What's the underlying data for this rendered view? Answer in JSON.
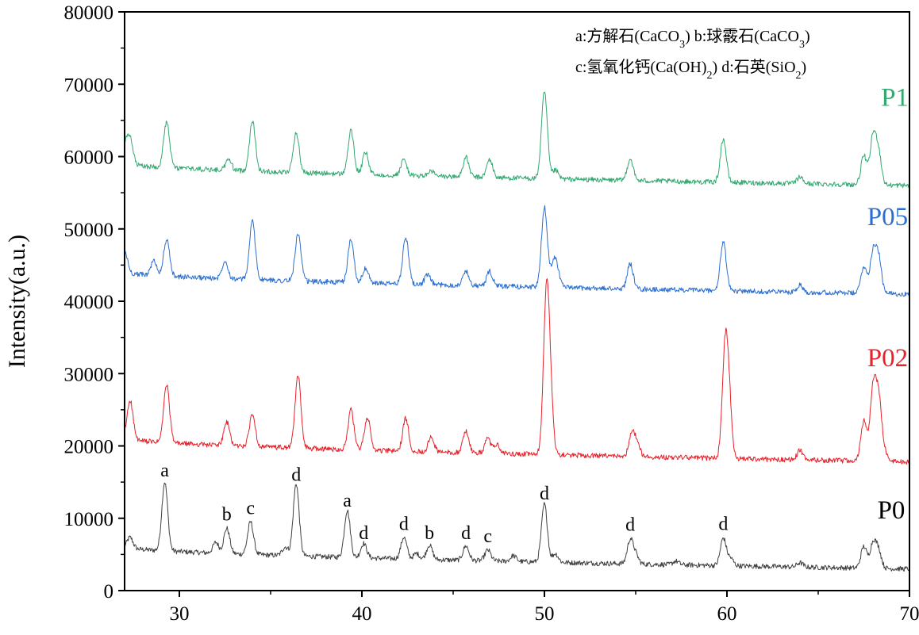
{
  "chart_data": {
    "type": "line",
    "title": "",
    "xlabel": "",
    "ylabel": "Intensity(a.u.)",
    "xlim": [
      27,
      70
    ],
    "ylim": [
      0,
      80000
    ],
    "x_ticks": [
      30,
      40,
      50,
      60,
      70
    ],
    "y_ticks": [
      0,
      10000,
      20000,
      30000,
      40000,
      50000,
      60000,
      70000,
      80000
    ],
    "grid": false,
    "legend_position": "top-right",
    "legend_lines": [
      [
        "a:方解石(CaCO",
        "3",
        ")  b:球霰石(CaCO",
        "3",
        ")"
      ],
      [
        "c:氢氧化钙(Ca(OH)",
        "2",
        ") d:石英(SiO",
        "2",
        ")"
      ]
    ],
    "series": [
      {
        "name": "P0",
        "color": "#404040",
        "baseline_start": 6000,
        "baseline_end": 3000,
        "peaks": [
          [
            27.3,
            1500
          ],
          [
            29.2,
            9500
          ],
          [
            32.0,
            1500
          ],
          [
            32.6,
            3500
          ],
          [
            33.9,
            4500
          ],
          [
            35.8,
            1200
          ],
          [
            36.4,
            10000
          ],
          [
            39.2,
            6500
          ],
          [
            40.1,
            2000
          ],
          [
            42.3,
            3000
          ],
          [
            43.0,
            800
          ],
          [
            43.7,
            2000
          ],
          [
            45.7,
            2000
          ],
          [
            46.9,
            1500
          ],
          [
            48.3,
            800
          ],
          [
            50.0,
            8000
          ],
          [
            50.6,
            1200
          ],
          [
            54.7,
            3300
          ],
          [
            55.0,
            1200
          ],
          [
            57.2,
            500
          ],
          [
            59.8,
            3800
          ],
          [
            60.2,
            1000
          ],
          [
            64.0,
            600
          ],
          [
            67.5,
            3000
          ],
          [
            68.0,
            3400
          ],
          [
            68.3,
            2500
          ]
        ]
      },
      {
        "name": "P02",
        "color": "#e8212a",
        "baseline_start": 21000,
        "baseline_end": 17800,
        "peaks": [
          [
            27.3,
            5500
          ],
          [
            29.3,
            8000
          ],
          [
            32.6,
            3200
          ],
          [
            34.0,
            4500
          ],
          [
            36.5,
            10000
          ],
          [
            39.4,
            5500
          ],
          [
            40.3,
            4500
          ],
          [
            42.4,
            4500
          ],
          [
            43.8,
            2000
          ],
          [
            45.7,
            3000
          ],
          [
            46.9,
            2000
          ],
          [
            47.4,
            1200
          ],
          [
            50.1,
            20000
          ],
          [
            50.3,
            8000
          ],
          [
            54.8,
            3500
          ],
          [
            55.1,
            1500
          ],
          [
            59.9,
            14000
          ],
          [
            60.1,
            7000
          ],
          [
            64.0,
            1300
          ],
          [
            67.5,
            5500
          ],
          [
            68.0,
            9500
          ],
          [
            68.3,
            8500
          ],
          [
            68.6,
            1500
          ]
        ]
      },
      {
        "name": "P05",
        "color": "#2b6fd0",
        "baseline_start": 44000,
        "baseline_end": 41000,
        "peaks": [
          [
            27.0,
            3000
          ],
          [
            28.6,
            2000
          ],
          [
            29.3,
            5000
          ],
          [
            32.5,
            2500
          ],
          [
            34.0,
            8000
          ],
          [
            36.5,
            6500
          ],
          [
            39.4,
            6000
          ],
          [
            40.2,
            2000
          ],
          [
            42.4,
            6500
          ],
          [
            43.6,
            1300
          ],
          [
            45.7,
            2000
          ],
          [
            47.0,
            2000
          ],
          [
            50.0,
            11000
          ],
          [
            50.5,
            3000
          ],
          [
            50.7,
            2000
          ],
          [
            54.7,
            3500
          ],
          [
            59.8,
            6800
          ],
          [
            64.0,
            1000
          ],
          [
            67.5,
            3700
          ],
          [
            68.0,
            5500
          ],
          [
            68.3,
            5000
          ]
        ]
      },
      {
        "name": "P1",
        "color": "#33a870",
        "baseline_start": 59000,
        "baseline_end": 56000,
        "peaks": [
          [
            27.0,
            2500
          ],
          [
            27.3,
            3500
          ],
          [
            29.3,
            6300
          ],
          [
            32.7,
            1500
          ],
          [
            34.0,
            7000
          ],
          [
            36.4,
            5500
          ],
          [
            39.4,
            6000
          ],
          [
            40.2,
            3000
          ],
          [
            42.3,
            2200
          ],
          [
            43.8,
            700
          ],
          [
            45.7,
            2700
          ],
          [
            47.0,
            2500
          ],
          [
            50.0,
            12000
          ],
          [
            50.6,
            1200
          ],
          [
            54.7,
            3000
          ],
          [
            59.8,
            6000
          ],
          [
            64.0,
            900
          ],
          [
            67.5,
            4000
          ],
          [
            68.0,
            6500
          ],
          [
            68.3,
            4500
          ]
        ]
      }
    ],
    "series_labels": [
      {
        "text": "P0",
        "x": 69.0,
        "y": 10000,
        "color": "#000000"
      },
      {
        "text": "P02",
        "x": 68.8,
        "y": 31000,
        "color": "#e8212a"
      },
      {
        "text": "P05",
        "x": 68.8,
        "y": 50500,
        "color": "#2b6fd0"
      },
      {
        "text": "P1",
        "x": 69.2,
        "y": 67000,
        "color": "#33a870"
      }
    ],
    "peak_labels": [
      {
        "text": "a",
        "x": 29.2,
        "y": 15800
      },
      {
        "text": "b",
        "x": 32.6,
        "y": 9700
      },
      {
        "text": "c",
        "x": 33.9,
        "y": 10600
      },
      {
        "text": "d",
        "x": 36.4,
        "y": 15200
      },
      {
        "text": "a",
        "x": 39.2,
        "y": 11600
      },
      {
        "text": "d",
        "x": 40.1,
        "y": 7100
      },
      {
        "text": "d",
        "x": 42.3,
        "y": 8400
      },
      {
        "text": "b",
        "x": 43.7,
        "y": 7100
      },
      {
        "text": "d",
        "x": 45.7,
        "y": 7100
      },
      {
        "text": "c",
        "x": 46.9,
        "y": 6700
      },
      {
        "text": "d",
        "x": 50.0,
        "y": 12600
      },
      {
        "text": "d",
        "x": 54.7,
        "y": 8300
      },
      {
        "text": "d",
        "x": 59.8,
        "y": 8400
      }
    ]
  }
}
